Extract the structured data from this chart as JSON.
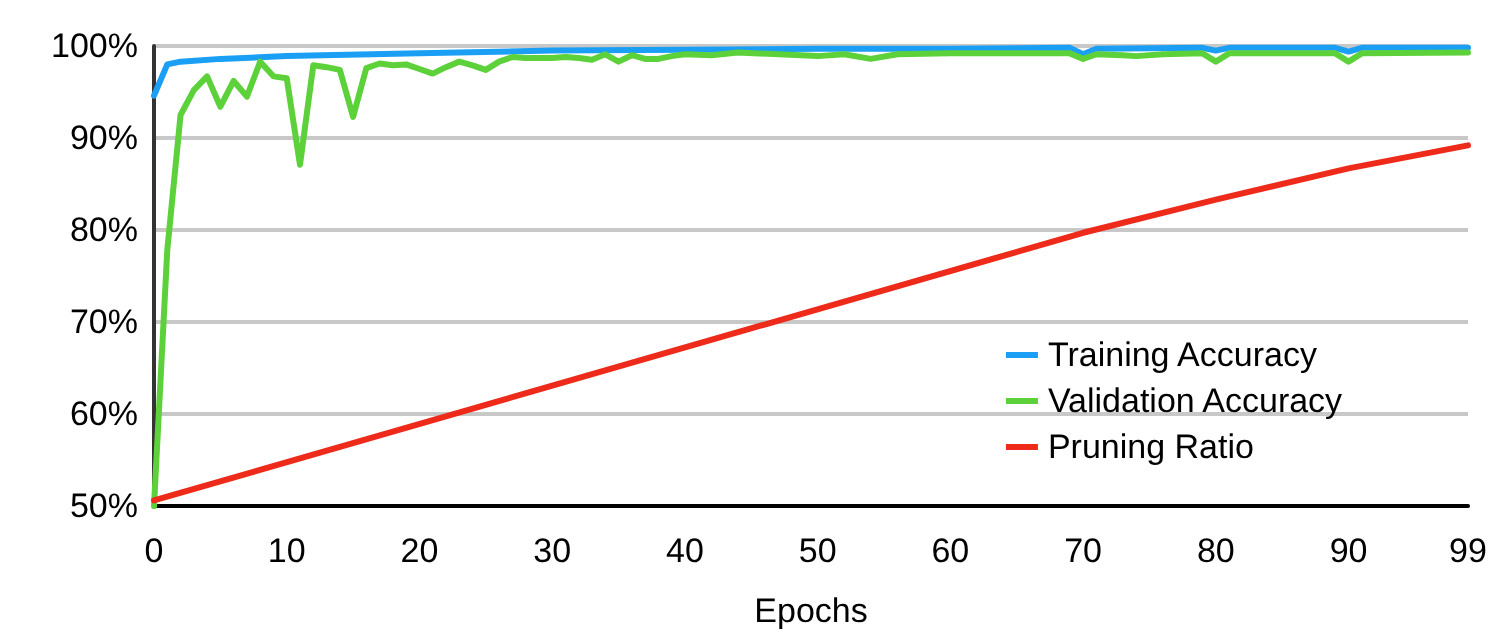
{
  "chart_data": {
    "type": "line",
    "xlabel": "Epochs",
    "xlim": [
      0,
      99
    ],
    "xticks": [
      0,
      10,
      20,
      30,
      40,
      50,
      60,
      70,
      80,
      90,
      99
    ],
    "ylim": [
      50,
      100
    ],
    "yticks": [
      {
        "value": 50,
        "label": "50%"
      },
      {
        "value": 60,
        "label": "60%"
      },
      {
        "value": 70,
        "label": "70%"
      },
      {
        "value": 80,
        "label": "80%"
      },
      {
        "value": 90,
        "label": "90%"
      },
      {
        "value": 100,
        "label": "100%"
      }
    ],
    "grid": "y",
    "legend": "bottom right",
    "marker": "none",
    "line_style": "solid",
    "series": [
      {
        "name": "Training Accuracy",
        "color": "#1a9ff5",
        "x": [
          0,
          1,
          2,
          5,
          10,
          20,
          30,
          40,
          50,
          60,
          69,
          70,
          71,
          79,
          80,
          81,
          89,
          90,
          91,
          99
        ],
        "values": [
          94.6,
          98.0,
          98.3,
          98.6,
          98.9,
          99.2,
          99.5,
          99.6,
          99.7,
          99.7,
          99.8,
          99.1,
          99.7,
          99.8,
          99.5,
          99.8,
          99.8,
          99.4,
          99.8,
          99.8
        ]
      },
      {
        "name": "Validation Accuracy",
        "color": "#5cd13a",
        "x": [
          0,
          1,
          2,
          3,
          4,
          5,
          6,
          7,
          8,
          9,
          10,
          11,
          12,
          13,
          14,
          15,
          16,
          17,
          18,
          19,
          20,
          21,
          22,
          23,
          24,
          25,
          26,
          27,
          28,
          29,
          30,
          31,
          32,
          33,
          34,
          35,
          36,
          37,
          38,
          39,
          40,
          42,
          44,
          50,
          52,
          54,
          56,
          60,
          69,
          70,
          71,
          73,
          74,
          76,
          79,
          80,
          81,
          89,
          90,
          91,
          99
        ],
        "values": [
          50,
          77.8,
          92.5,
          95.2,
          96.7,
          93.4,
          96.2,
          94.5,
          98.3,
          96.7,
          96.5,
          87.1,
          97.9,
          97.7,
          97.4,
          92.3,
          97.6,
          98.1,
          97.9,
          98.0,
          97.5,
          97.0,
          97.7,
          98.3,
          97.9,
          97.4,
          98.3,
          98.8,
          98.7,
          98.7,
          98.7,
          98.8,
          98.7,
          98.5,
          99.1,
          98.3,
          99.0,
          98.6,
          98.6,
          98.9,
          99.1,
          99.0,
          99.3,
          98.9,
          99.1,
          98.6,
          99.1,
          99.2,
          99.2,
          98.6,
          99.1,
          99.0,
          98.9,
          99.1,
          99.2,
          98.3,
          99.2,
          99.2,
          98.3,
          99.2,
          99.3
        ]
      },
      {
        "name": "Pruning Ratio",
        "color": "#ee2a1a",
        "x": [
          0,
          70,
          80,
          90,
          99
        ],
        "values": [
          50.6,
          79.7,
          83.3,
          86.7,
          89.2
        ]
      }
    ]
  }
}
